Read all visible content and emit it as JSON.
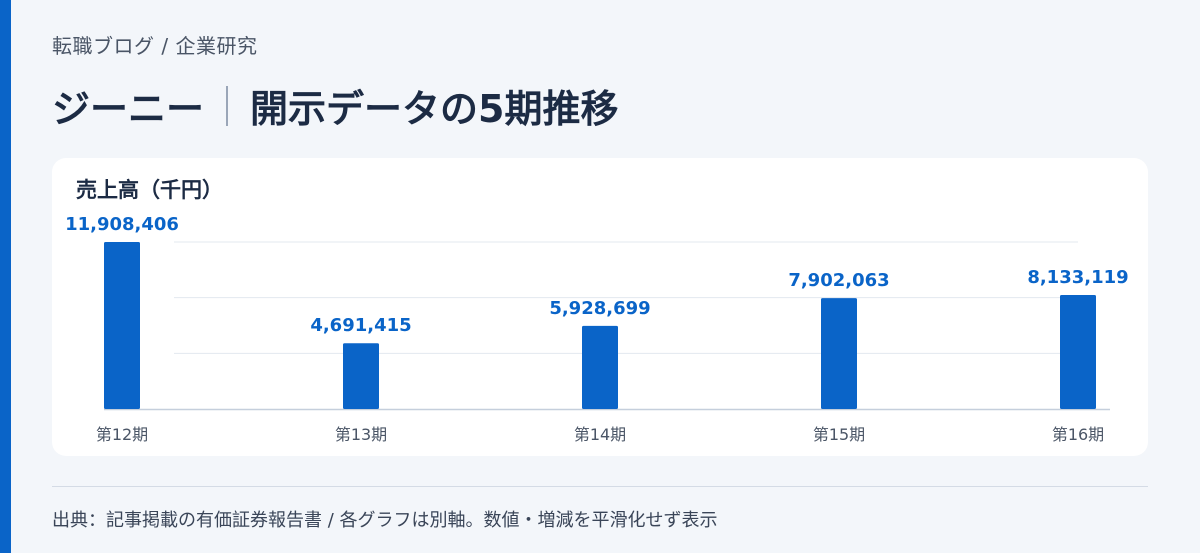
{
  "breadcrumb": "転職ブログ / 企業研究",
  "title": {
    "company": "ジーニー",
    "subtitle": "開示データの5期推移"
  },
  "chart_card": {
    "title": "売上高（千円）"
  },
  "chart_data": {
    "type": "bar",
    "title": "売上高（千円）",
    "categories": [
      "第12期",
      "第13期",
      "第14期",
      "第15期",
      "第16期"
    ],
    "values": [
      11908406,
      4691415,
      5928699,
      7902063,
      8133119
    ],
    "value_labels": [
      "11,908,406",
      "4,691,415",
      "5,928,699",
      "7,902,063",
      "8,133,119"
    ],
    "ylim": [
      0,
      11908406
    ],
    "grid": true,
    "bar_color": "#0a64c8",
    "label_color": "#0a64c8"
  },
  "footnote": "出典：記事掲載の有価証券報告書 / 各グラフは別軸。数値・増減を平滑化せず表示",
  "colors": {
    "accent": "#0a64c8",
    "background": "#f3f6fa",
    "card": "#ffffff",
    "text_dark": "#1c2b44"
  }
}
